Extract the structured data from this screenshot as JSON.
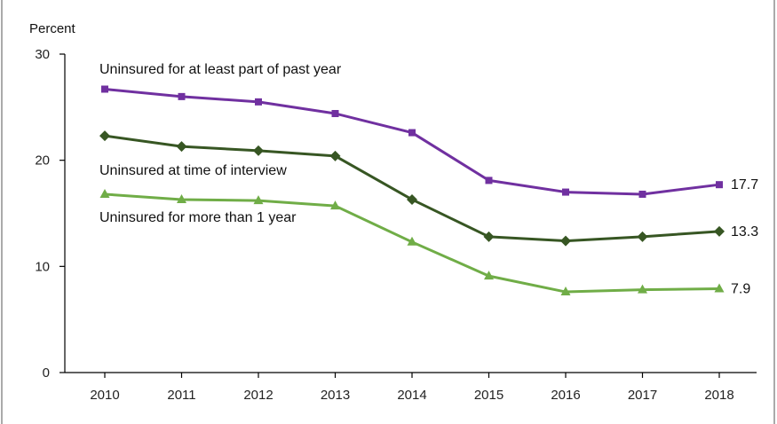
{
  "chart_data": {
    "type": "line",
    "ylabel": "Percent",
    "ylim": [
      0,
      30
    ],
    "yticks": [
      0,
      10,
      20,
      30
    ],
    "grid": false,
    "legend": "none",
    "categories": [
      "2010",
      "2011",
      "2012",
      "2013",
      "2014",
      "2015",
      "2016",
      "2017",
      "2018"
    ],
    "series": [
      {
        "name": "Uninsured for at least part of past year",
        "color": "#7030a0",
        "marker": "square",
        "values": [
          26.7,
          26.0,
          25.5,
          24.4,
          22.6,
          18.1,
          17.0,
          16.8,
          17.7
        ],
        "end_label": "17.7"
      },
      {
        "name": "Uninsured at time of interview",
        "color": "#375623",
        "marker": "diamond",
        "values": [
          22.3,
          21.3,
          20.9,
          20.4,
          16.3,
          12.8,
          12.4,
          12.8,
          13.3
        ],
        "end_label": "13.3"
      },
      {
        "name": "Uninsured for more than 1 year",
        "color": "#70ad47",
        "marker": "triangle",
        "values": [
          16.8,
          16.3,
          16.2,
          15.7,
          12.3,
          9.1,
          7.6,
          7.8,
          7.9
        ],
        "end_label": "7.9"
      }
    ]
  }
}
